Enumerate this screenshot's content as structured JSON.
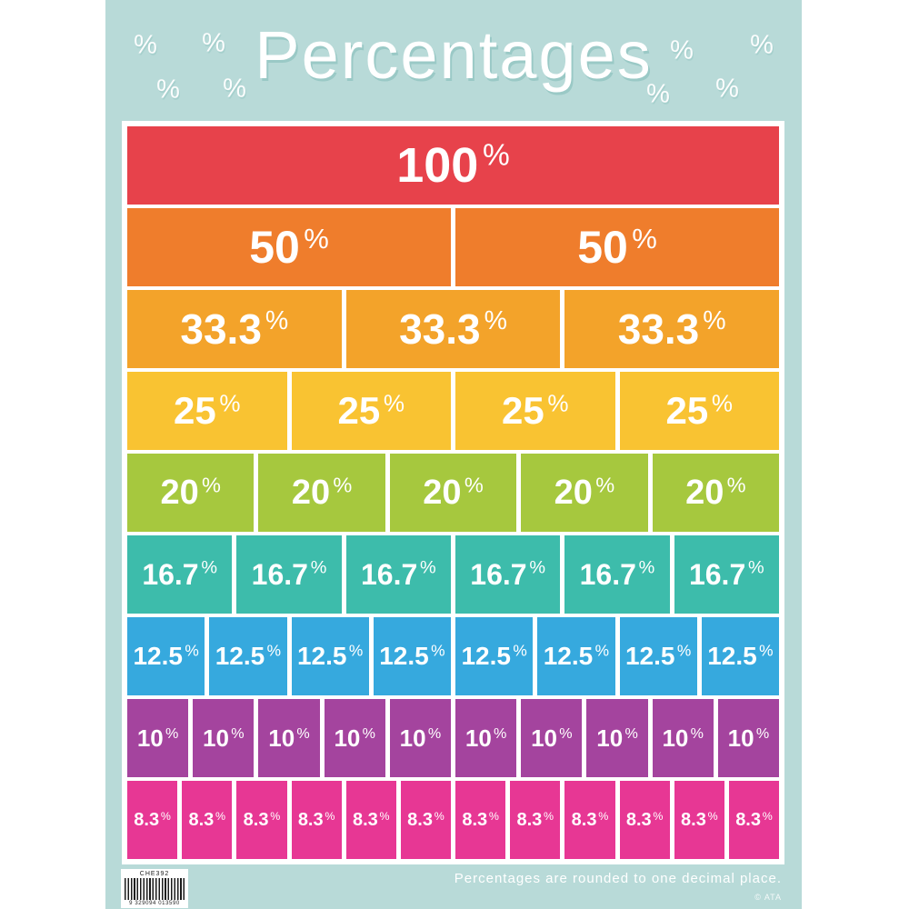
{
  "poster": {
    "title": "Percentages",
    "decoration_symbol": "%",
    "footer_note": "Percentages are rounded to one decimal place.",
    "copyright": "© ATA",
    "product_code": "CHE392",
    "barcode_digits": "9 329094 013590",
    "background_color": "#b8dad8",
    "chart_border_color": "#ffffff",
    "text_color": "#ffffff"
  },
  "chart_data": {
    "type": "bar",
    "title": "Percentages",
    "subtitle_note": "Percentages are rounded to one decimal place.",
    "description": "Percentage fraction wall: each row divides 100% into equal segments",
    "legend_position": "none",
    "rows": [
      {
        "segments": 1,
        "segment_label": "100",
        "percent_sign": "%",
        "value_per_segment": 100,
        "color": "#e7424b"
      },
      {
        "segments": 2,
        "segment_label": "50",
        "percent_sign": "%",
        "value_per_segment": 50,
        "color": "#ef7d2c"
      },
      {
        "segments": 3,
        "segment_label": "33.3",
        "percent_sign": "%",
        "value_per_segment": 33.3,
        "color": "#f3a32a"
      },
      {
        "segments": 4,
        "segment_label": "25",
        "percent_sign": "%",
        "value_per_segment": 25,
        "color": "#f9c332"
      },
      {
        "segments": 5,
        "segment_label": "20",
        "percent_sign": "%",
        "value_per_segment": 20,
        "color": "#a6c83e"
      },
      {
        "segments": 6,
        "segment_label": "16.7",
        "percent_sign": "%",
        "value_per_segment": 16.7,
        "color": "#3dbcab"
      },
      {
        "segments": 8,
        "segment_label": "12.5",
        "percent_sign": "%",
        "value_per_segment": 12.5,
        "color": "#36a9de"
      },
      {
        "segments": 10,
        "segment_label": "10",
        "percent_sign": "%",
        "value_per_segment": 10,
        "color": "#a4449e"
      },
      {
        "segments": 12,
        "segment_label": "8.3",
        "percent_sign": "%",
        "value_per_segment": 8.3,
        "color": "#e73794"
      }
    ]
  }
}
